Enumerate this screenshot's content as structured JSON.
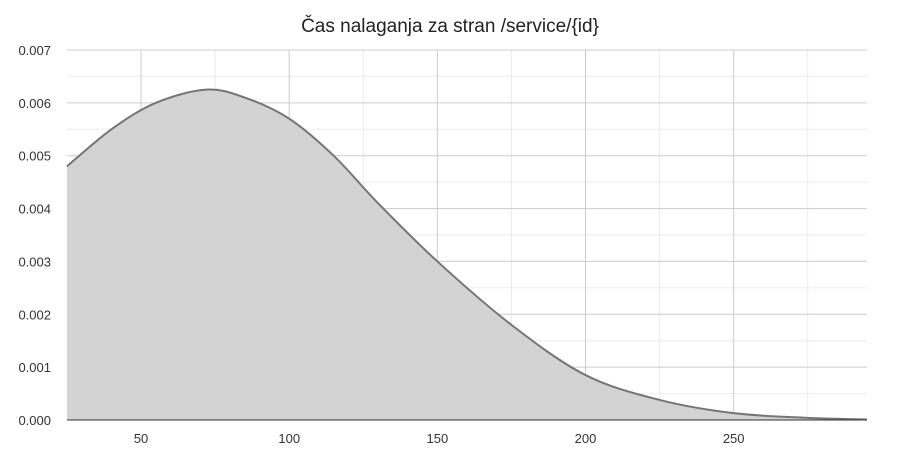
{
  "chart_data": {
    "type": "area",
    "title": "Čas nalaganja za stran /service/{id}",
    "xlabel": "",
    "ylabel": "",
    "xlim": [
      25,
      295
    ],
    "ylim": [
      0,
      0.007
    ],
    "xticks": [
      50,
      100,
      150,
      200,
      250
    ],
    "yticks": [
      "0.000",
      "0.001",
      "0.002",
      "0.003",
      "0.004",
      "0.005",
      "0.006",
      "0.007"
    ],
    "grid": true,
    "legend": "none",
    "series": [
      {
        "x": [
          25,
          40,
          55,
          72,
          85,
          100,
          115,
          130,
          150,
          175,
          200,
          225,
          250,
          275,
          295
        ],
        "values": [
          0.0048,
          0.0055,
          0.006,
          0.00625,
          0.0061,
          0.0057,
          0.005,
          0.0041,
          0.003,
          0.0018,
          0.00085,
          0.00038,
          0.00013,
          4e-05,
          1e-05
        ]
      }
    ],
    "colors": {
      "fill": "#d3d3d3",
      "line": "#757575",
      "grid": "#cccccc",
      "grid_minor": "#ebebeb"
    }
  }
}
